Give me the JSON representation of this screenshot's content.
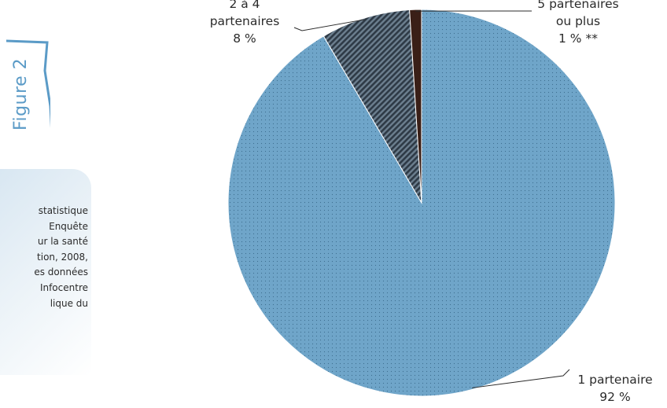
{
  "figure_label": "Figure 2",
  "source_lines": [
    "statistique",
    "Enquête",
    "ur la santé",
    "tion, 2008,",
    "es données",
    "Infocentre",
    "lique du"
  ],
  "colors": {
    "accent_line": "#5b9bc7",
    "slice_one": "#6fa5c9",
    "slice_two_four": "#3d4a57",
    "slice_five_plus": "#3a1f17"
  },
  "chart_data": {
    "type": "pie",
    "title": "",
    "slices": [
      {
        "name": "1 partenaire",
        "value": 92,
        "label_lines": [
          "1 partenaire",
          "92 %"
        ],
        "pattern": "dots"
      },
      {
        "name": "2 à 4 partenaires",
        "value": 7.5,
        "label_lines": [
          "2 à 4",
          "partenaires",
          "8 %"
        ],
        "pattern": "hatch"
      },
      {
        "name": "5 partenaires ou plus",
        "value": 1,
        "label_lines": [
          "5 partenaires",
          "ou plus",
          "1 % **"
        ],
        "pattern": "solid"
      }
    ],
    "start_angle_deg": 0,
    "direction": "clockwise",
    "legend": "none",
    "data_labels": "outside with leader lines"
  }
}
